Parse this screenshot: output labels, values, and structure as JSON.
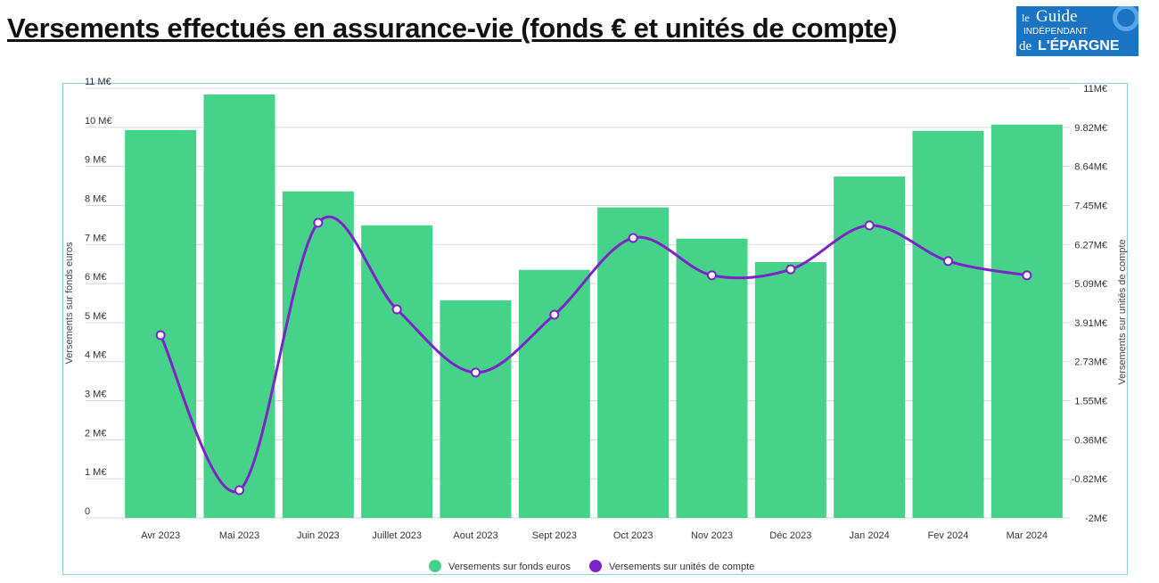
{
  "title": "Versements effectués en assurance-vie (fonds € et unités de compte)",
  "logo": {
    "line1": "le",
    "line2": "Guide",
    "line3": "INDÉPENDANT",
    "line4": "de",
    "line5": "L'ÉPARGNE"
  },
  "chart_data": {
    "type": "bar+line",
    "categories": [
      "Avr 2023",
      "Mai 2023",
      "Juin 2023",
      "Juillet 2023",
      "Aout 2023",
      "Sept 2023",
      "Oct 2023",
      "Nov 2023",
      "Déc 2023",
      "Jan 2024",
      "Fev 2024",
      "Mar 2024"
    ],
    "series": [
      {
        "name": "Versements sur fonds euros",
        "type": "bar",
        "axis": "left",
        "color": "#46d289",
        "values": [
          9.93,
          10.84,
          8.36,
          7.49,
          5.57,
          6.35,
          7.95,
          7.15,
          6.55,
          8.74,
          9.91,
          10.07
        ]
      },
      {
        "name": "Versements sur unités de compte",
        "type": "line",
        "axis": "right",
        "color": "#7e22c9",
        "values": [
          3.53,
          -1.16,
          6.93,
          4.31,
          2.4,
          4.15,
          6.47,
          5.34,
          5.52,
          6.85,
          5.77,
          5.34
        ]
      }
    ],
    "left_axis": {
      "label": "Versements sur fonds euros",
      "range": [
        0,
        11
      ],
      "ticks": [
        "0",
        "1 M€",
        "2 M€",
        "3 M€",
        "4 M€",
        "5 M€",
        "6 M€",
        "7 M€",
        "8 M€",
        "9 M€",
        "10 M€",
        "11 M€"
      ]
    },
    "right_axis": {
      "label": "Versements sur unités de compte",
      "range": [
        -2,
        11
      ],
      "ticks": [
        "-2M€",
        "-0.82M€",
        "0.36M€",
        "1.55M€",
        "2.73M€",
        "3.91M€",
        "5.09M€",
        "6.27M€",
        "7.45M€",
        "8.64M€",
        "9.82M€",
        "11M€"
      ]
    },
    "grid": true,
    "legend": "bottom"
  }
}
